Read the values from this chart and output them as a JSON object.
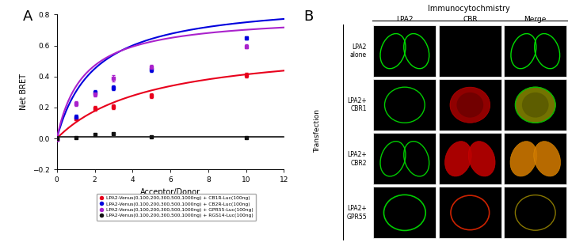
{
  "panel_A_label": "A",
  "panel_B_label": "B",
  "xlabel": "Acceptor/Donor",
  "ylabel": "Net BRET",
  "xlim": [
    0,
    12
  ],
  "ylim": [
    -0.2,
    0.8
  ],
  "xticks": [
    0,
    2,
    4,
    6,
    8,
    10,
    12
  ],
  "yticks": [
    -0.2,
    0.0,
    0.2,
    0.4,
    0.6,
    0.8
  ],
  "series": [
    {
      "label": "LPA2-Venus(0,100,200,300,500,1000ng) + CB1R-Luc(100ng)",
      "color": "#e8001c",
      "x": [
        0,
        1,
        2,
        3,
        5,
        10
      ],
      "y": [
        -0.005,
        0.13,
        0.195,
        0.205,
        0.275,
        0.41
      ],
      "yerr": [
        0.008,
        0.012,
        0.015,
        0.015,
        0.015,
        0.015
      ],
      "Bmax": 0.62,
      "Kd": 5.0
    },
    {
      "label": "LPA2-Venus(0,100,200,300,500,1000ng) + CB2R-Luc(100ng)",
      "color": "#0000dd",
      "x": [
        0,
        1,
        2,
        3,
        5,
        10
      ],
      "y": [
        -0.005,
        0.14,
        0.295,
        0.325,
        0.445,
        0.648
      ],
      "yerr": [
        0.008,
        0.012,
        0.015,
        0.015,
        0.015,
        0.012
      ],
      "Bmax": 0.9,
      "Kd": 2.0
    },
    {
      "label": "LPA2-Venus(0,100,200,300,500,1000ng) + GPR55-Luc(100ng)",
      "color": "#aa22cc",
      "x": [
        0,
        1,
        2,
        3,
        5,
        10
      ],
      "y": [
        -0.005,
        0.225,
        0.285,
        0.39,
        0.46,
        0.595
      ],
      "yerr": [
        0.008,
        0.015,
        0.015,
        0.02,
        0.015,
        0.015
      ],
      "Bmax": 0.8,
      "Kd": 1.4
    },
    {
      "label": "LPA2-Venus(0,100,200,300,500,1000ng) + RGS14-Luc(100ng)",
      "color": "#111111",
      "x": [
        0,
        1,
        2,
        3,
        5,
        10
      ],
      "y": [
        0.0,
        0.006,
        0.026,
        0.032,
        0.012,
        0.006
      ],
      "yerr": [
        0.004,
        0.006,
        0.006,
        0.006,
        0.006,
        0.005
      ],
      "Bmax": 0.04,
      "Kd": 1.0
    }
  ],
  "icc_title": "Immunocytochmistry",
  "col_headers": [
    "LPA2",
    "CBR",
    "Merge"
  ],
  "row_labels": [
    "LPA2\nalone",
    "LPA2+\nCBR1",
    "LPA2+\nCBR2",
    "LPA2+\nGPR55"
  ],
  "transfection_label": "Transfection",
  "background_color": "#ffffff"
}
